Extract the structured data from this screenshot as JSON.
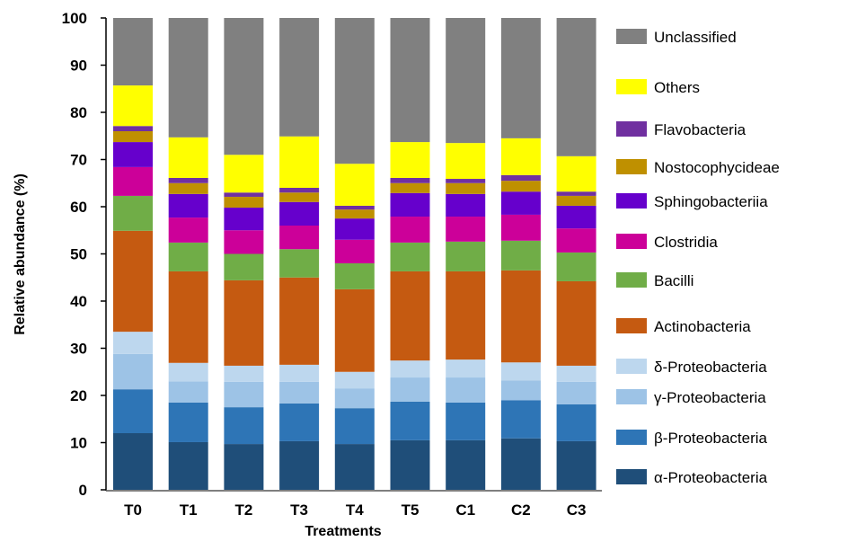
{
  "chart_data": {
    "type": "bar",
    "stacked": true,
    "title": "",
    "xlabel": "Treatments",
    "ylabel": "Relative  abundance (%)",
    "ylim": [
      0,
      100
    ],
    "yticks": [
      0,
      10,
      20,
      30,
      40,
      50,
      60,
      70,
      80,
      90,
      100
    ],
    "grid": false,
    "legend_position": "right",
    "categories": [
      "T0",
      "T1",
      "T2",
      "T3",
      "T4",
      "T5",
      "C1",
      "C2",
      "C3"
    ],
    "series": [
      {
        "name": "α-Proteobacteria",
        "color": "#1F4E79",
        "values": [
          12.0,
          10.1,
          9.7,
          10.3,
          9.7,
          10.5,
          10.5,
          10.9,
          10.3
        ]
      },
      {
        "name": "β-Proteobacteria",
        "color": "#2E75B6",
        "values": [
          9.3,
          8.4,
          7.8,
          8.0,
          7.6,
          8.2,
          8.0,
          8.1,
          7.8
        ]
      },
      {
        "name": "γ-Proteobacteria",
        "color": "#9DC3E6",
        "values": [
          7.5,
          4.5,
          5.4,
          4.6,
          4.2,
          5.1,
          5.3,
          4.2,
          4.8
        ]
      },
      {
        "name": "δ-Proteobacteria",
        "color": "#BDD7EE",
        "values": [
          4.7,
          3.9,
          3.4,
          3.6,
          3.5,
          3.6,
          3.8,
          3.8,
          3.4
        ]
      },
      {
        "name": "Actinobacteria",
        "color": "#C55A11",
        "values": [
          21.4,
          19.4,
          18.1,
          18.5,
          17.5,
          18.9,
          18.7,
          19.5,
          17.9
        ]
      },
      {
        "name": "Bacilli",
        "color": "#70AD47",
        "values": [
          7.4,
          6.1,
          5.6,
          6.0,
          5.5,
          6.1,
          6.3,
          6.3,
          6.1
        ]
      },
      {
        "name": "Clostridia",
        "color": "#CC0099",
        "values": [
          6.1,
          5.3,
          5.0,
          5.0,
          5.0,
          5.5,
          5.3,
          5.5,
          5.1
        ]
      },
      {
        "name": "Sphingobacteriia",
        "color": "#6600CC",
        "values": [
          5.3,
          5.0,
          4.8,
          5.0,
          4.5,
          5.0,
          4.8,
          4.9,
          4.8
        ]
      },
      {
        "name": "Nostocophycideae",
        "color": "#BF9000",
        "values": [
          2.3,
          2.3,
          2.3,
          2.0,
          1.9,
          2.1,
          2.3,
          2.3,
          2.1
        ]
      },
      {
        "name": "Flavobacteria",
        "color": "#7030A0",
        "values": [
          1.1,
          1.1,
          0.9,
          1.0,
          0.8,
          1.1,
          0.9,
          1.2,
          0.9
        ]
      },
      {
        "name": "Others",
        "color": "#FFFF00",
        "values": [
          8.6,
          8.6,
          8.0,
          10.9,
          8.9,
          7.6,
          7.6,
          7.8,
          7.5
        ]
      },
      {
        "name": "Unclassified",
        "color": "#808080",
        "values": [
          14.3,
          25.3,
          29.0,
          25.1,
          30.9,
          26.3,
          26.5,
          25.5,
          29.3
        ]
      }
    ]
  }
}
